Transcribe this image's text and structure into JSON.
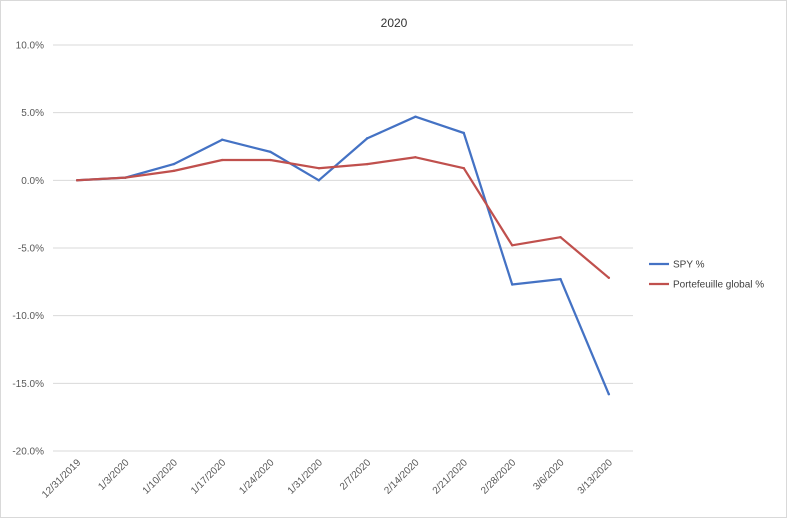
{
  "chart_data": {
    "type": "line",
    "title": "2020",
    "xlabel": "",
    "ylabel": "",
    "categories": [
      "12/31/2019",
      "1/3/2020",
      "1/10/2020",
      "1/17/2020",
      "1/24/2020",
      "1/31/2020",
      "2/7/2020",
      "2/14/2020",
      "2/21/2020",
      "2/28/2020",
      "3/6/2020",
      "3/13/2020"
    ],
    "ylim": [
      -0.2,
      0.1
    ],
    "yticks": [
      0.1,
      0.05,
      0.0,
      -0.05,
      -0.1,
      -0.15,
      -0.2
    ],
    "ytick_labels": [
      "10.0%",
      "5.0%",
      "0.0%",
      "-5.0%",
      "-10.0%",
      "-15.0%",
      "-20.0%"
    ],
    "grid": true,
    "legend_position": "right",
    "series": [
      {
        "name": "SPY %",
        "color": "#4472C4",
        "values": [
          0.0,
          0.002,
          0.012,
          0.03,
          0.021,
          0.0,
          0.031,
          0.047,
          0.035,
          -0.077,
          -0.073,
          -0.158
        ]
      },
      {
        "name": "Portefeuille global %",
        "color": "#C0504D",
        "values": [
          0.0,
          0.002,
          0.007,
          0.015,
          0.015,
          0.009,
          0.012,
          0.017,
          0.009,
          -0.048,
          -0.042,
          -0.072
        ]
      }
    ]
  }
}
